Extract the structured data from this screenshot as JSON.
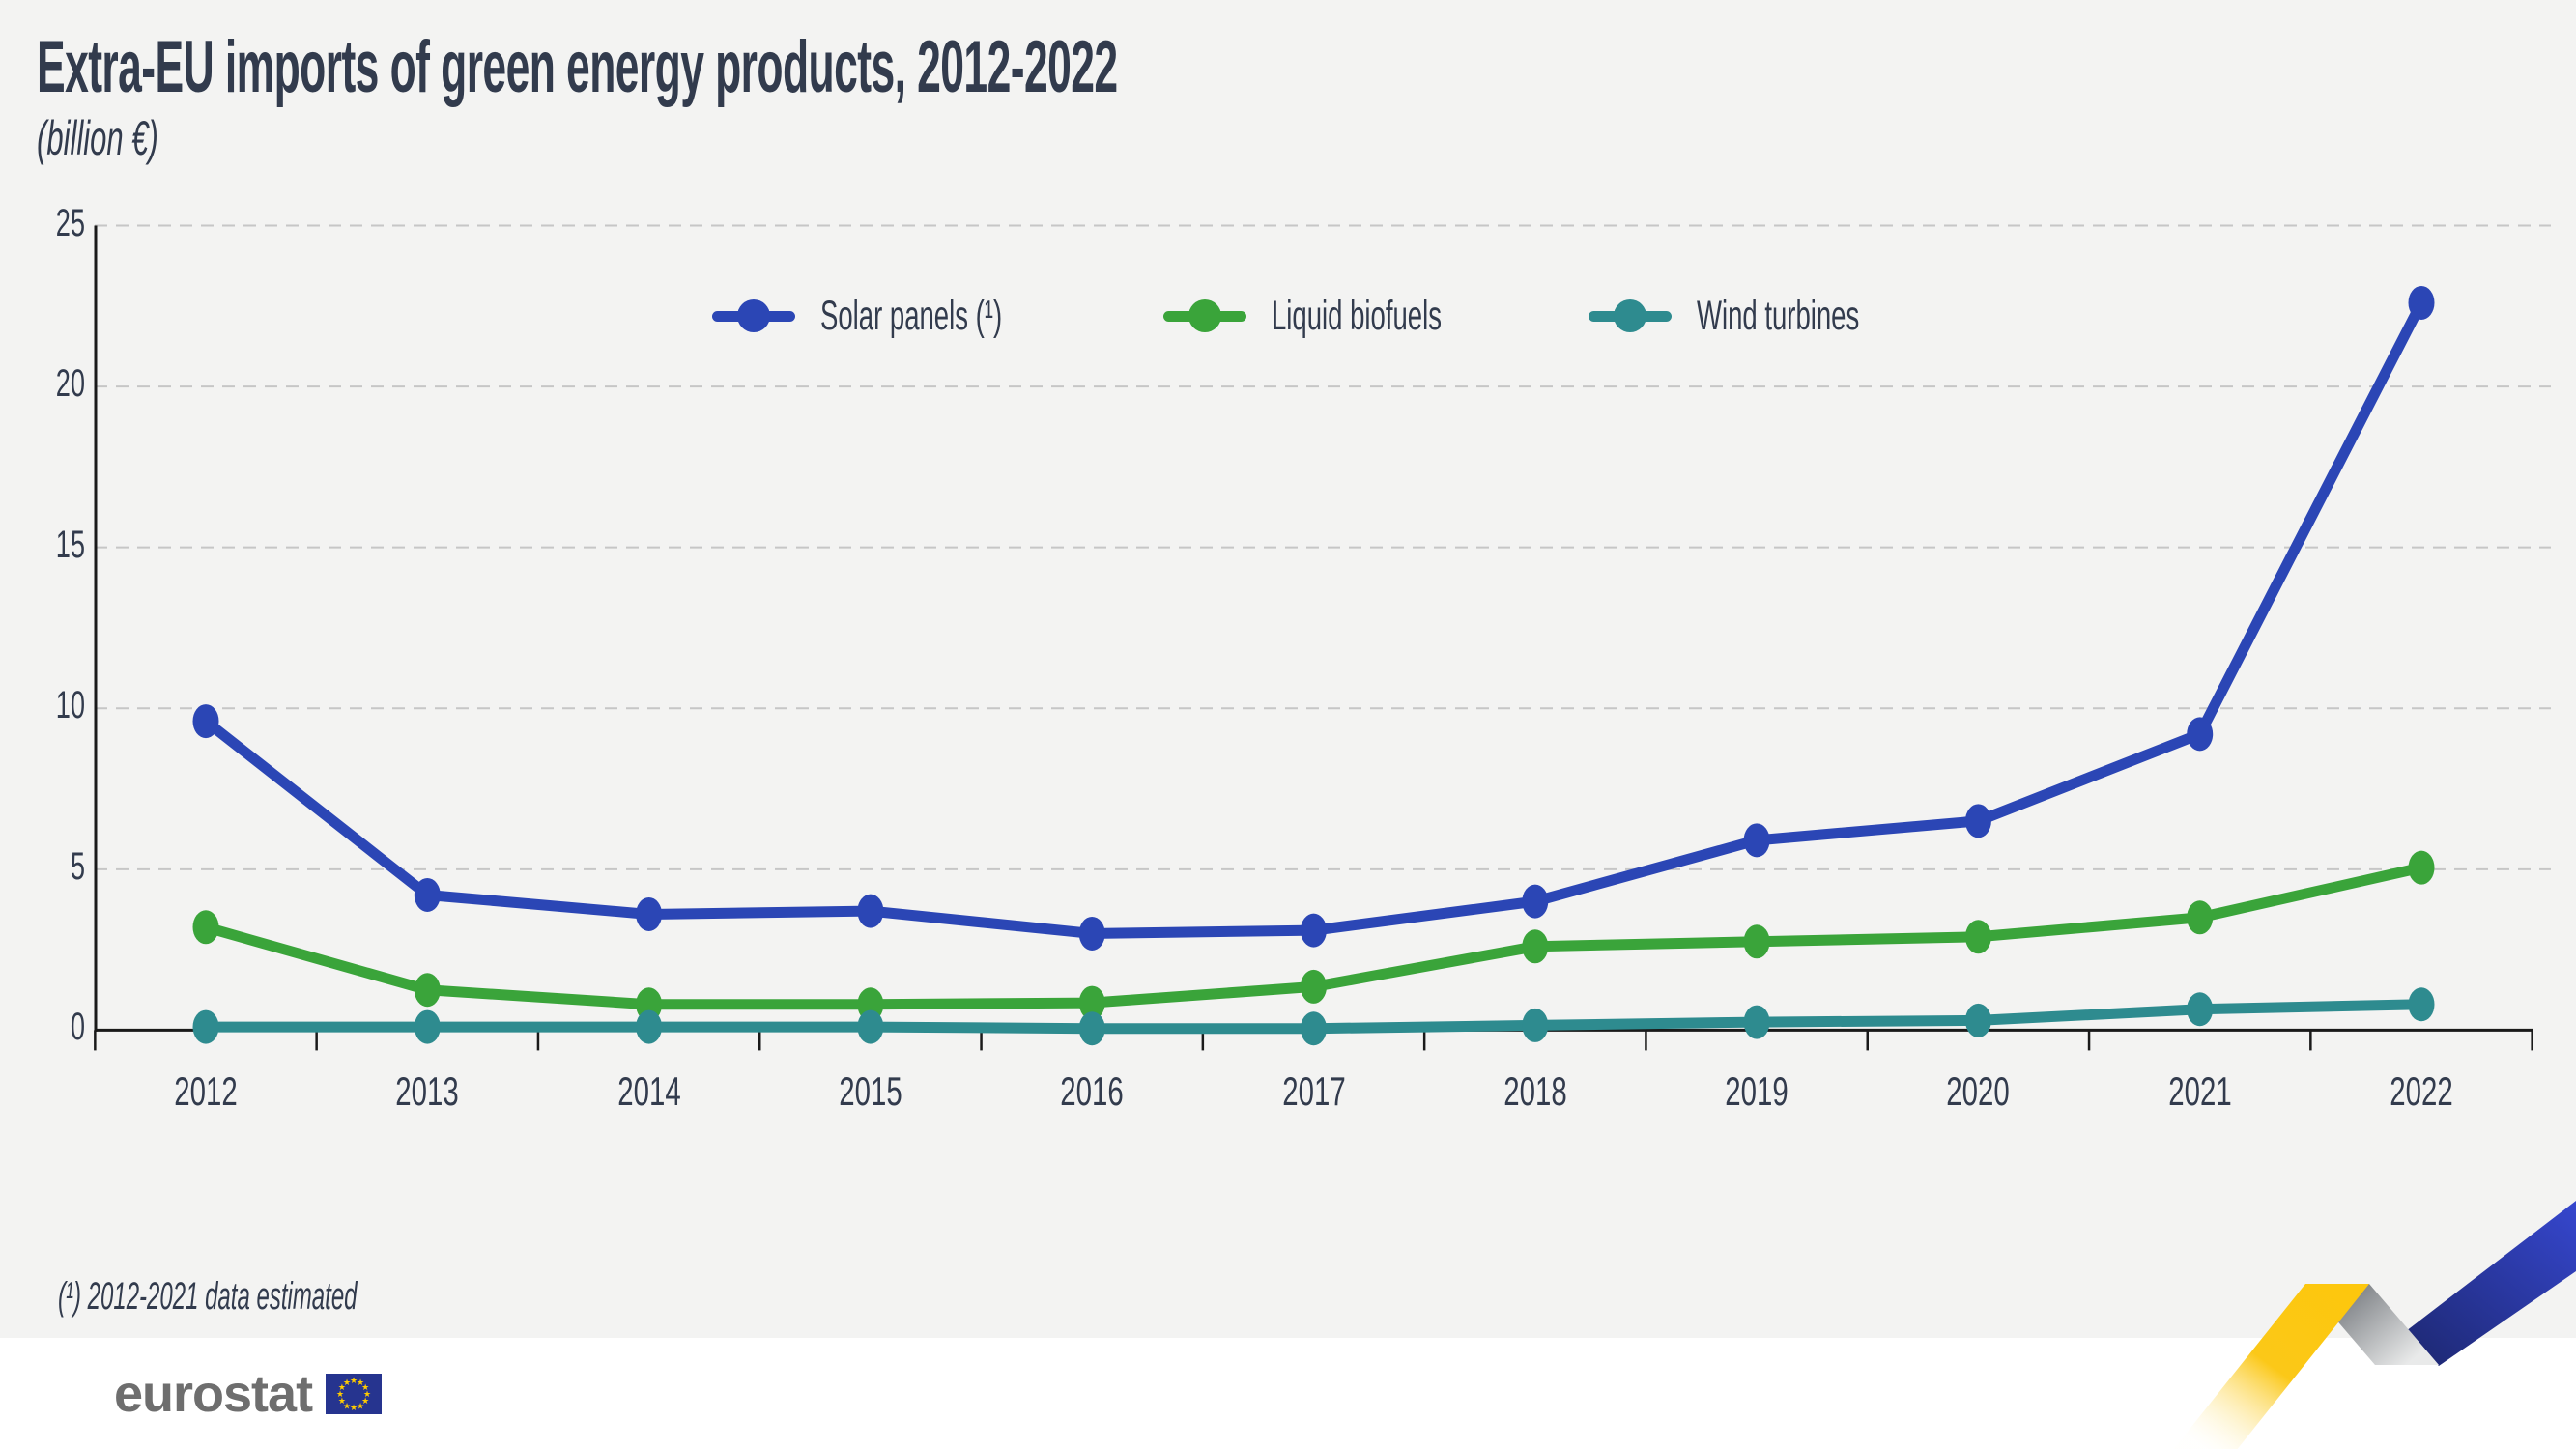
{
  "header": {
    "title": "Extra-EU imports of green energy products, 2012-2022",
    "subtitle": "(billion €)"
  },
  "chart_data": {
    "type": "line",
    "x": [
      2012,
      2013,
      2014,
      2015,
      2016,
      2017,
      2018,
      2019,
      2020,
      2021,
      2022
    ],
    "series": [
      {
        "name": "Solar panels (¹)",
        "color": "#2b46b5",
        "values": [
          9.6,
          4.2,
          3.6,
          3.7,
          3.0,
          3.1,
          4.0,
          5.9,
          6.5,
          9.2,
          22.6
        ]
      },
      {
        "name": "Liquid biofuels",
        "color": "#3aa43a",
        "values": [
          3.2,
          1.25,
          0.8,
          0.8,
          0.85,
          1.35,
          2.6,
          2.75,
          2.9,
          3.5,
          5.05
        ]
      },
      {
        "name": "Wind turbines",
        "color": "#2e8b8f",
        "values": [
          0.1,
          0.1,
          0.1,
          0.1,
          0.05,
          0.05,
          0.15,
          0.25,
          0.3,
          0.65,
          0.8
        ]
      }
    ],
    "ylim": [
      0,
      25
    ],
    "yticks": [
      0,
      5,
      10,
      15,
      20,
      25
    ],
    "xlabel": "",
    "ylabel": "billion €",
    "grid": "horizontal-dashed",
    "legend_position": "top-center"
  },
  "footnote": "(¹) 2012-2021 data estimated",
  "logo": {
    "text": "eurostat"
  },
  "colors": {
    "background": "#f3f3f2",
    "grid": "#c6c6c6",
    "axis": "#1a1a1a",
    "text": "#323b4d",
    "logo_gray": "#6e6e6e",
    "flag_blue": "#26348f",
    "star_yellow": "#ffcc00",
    "ribbon_yellow": "#fdc70d",
    "ribbon_gray": "#6d7176",
    "ribbon_blue": "#3647cf"
  }
}
